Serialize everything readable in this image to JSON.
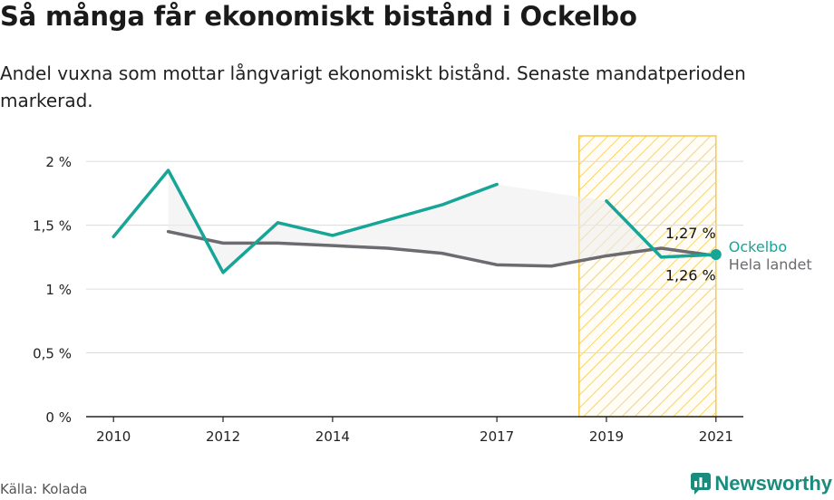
{
  "title": "Så många får ekonomiskt bistånd i Ockelbo",
  "subtitle": "Andel vuxna som mottar långvarigt ekonomiskt bistånd. Senaste mandatperioden markerad.",
  "source": "Källa: Kolada",
  "brand": "Newsworthy",
  "colors": {
    "primary": "#16a596",
    "secondary": "#6b6b70",
    "highlight": "#f5c94a",
    "band": "#ececec",
    "brand": "#1a8c7d"
  },
  "chart_data": {
    "type": "line",
    "x_ticks": [
      2010,
      2012,
      2014,
      2017,
      2019,
      2021
    ],
    "y_ticks": [
      0,
      0.5,
      1,
      1.5,
      2
    ],
    "y_tick_labels": [
      "0 %",
      "0,5 %",
      "1 %",
      "1,5 %",
      "2 %"
    ],
    "xlim": [
      2009.5,
      2021.5
    ],
    "ylim": [
      0,
      2.2
    ],
    "grid": true,
    "highlight_period": [
      2018.5,
      2021
    ],
    "series": [
      {
        "name": "Ockelbo",
        "color": "#16a596",
        "points": [
          [
            2010,
            1.41
          ],
          [
            2011,
            1.93
          ],
          [
            2012,
            1.13
          ],
          [
            2013,
            1.52
          ],
          [
            2014,
            1.42
          ],
          [
            2015,
            1.54
          ],
          [
            2016,
            1.66
          ],
          [
            2017,
            1.82
          ],
          [
            2018,
            null
          ],
          [
            2019,
            1.69
          ],
          [
            2020,
            1.25
          ],
          [
            2021,
            1.27
          ]
        ],
        "end_label": "1,27 %"
      },
      {
        "name": "Hela landet",
        "color": "#6b6b70",
        "points": [
          [
            2011,
            1.45
          ],
          [
            2012,
            1.36
          ],
          [
            2013,
            1.36
          ],
          [
            2014,
            1.34
          ],
          [
            2015,
            1.32
          ],
          [
            2016,
            1.28
          ],
          [
            2017,
            1.19
          ],
          [
            2018,
            1.18
          ],
          [
            2019,
            1.26
          ],
          [
            2020,
            1.32
          ],
          [
            2021,
            1.26
          ]
        ],
        "end_label": "1,26 %"
      }
    ]
  }
}
